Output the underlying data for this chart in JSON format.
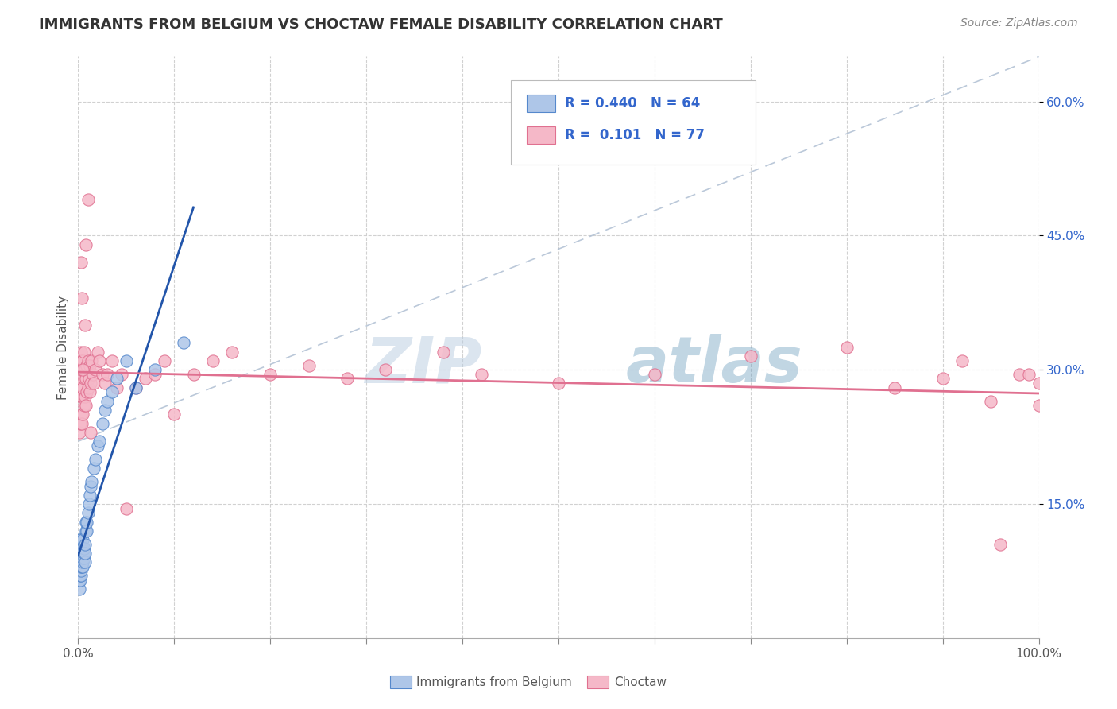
{
  "title": "IMMIGRANTS FROM BELGIUM VS CHOCTAW FEMALE DISABILITY CORRELATION CHART",
  "source_text": "Source: ZipAtlas.com",
  "ylabel": "Female Disability",
  "xmin": 0.0,
  "xmax": 1.0,
  "ymin": 0.0,
  "ymax": 0.65,
  "yticks": [
    0.15,
    0.3,
    0.45,
    0.6
  ],
  "ytick_labels": [
    "15.0%",
    "30.0%",
    "45.0%",
    "60.0%"
  ],
  "series1_color": "#aec6e8",
  "series1_edge": "#5588cc",
  "series2_color": "#f5b8c8",
  "series2_edge": "#e07090",
  "trend1_color": "#2255aa",
  "trend2_color": "#e07090",
  "trend_dash_color": "#aabbd0",
  "R1": 0.44,
  "N1": 64,
  "R2": 0.101,
  "N2": 77,
  "legend_label1": "Immigrants from Belgium",
  "legend_label2": "Choctaw",
  "watermark_zip": "ZIP",
  "watermark_atlas": "atlas",
  "background_color": "#ffffff",
  "grid_color": "#cccccc",
  "title_color": "#333333",
  "label_color": "#555555",
  "legend_text_color": "#3366cc",
  "tick_color": "#3366cc",
  "series1_data_x": [
    0.001,
    0.001,
    0.001,
    0.001,
    0.001,
    0.001,
    0.001,
    0.001,
    0.001,
    0.001,
    0.002,
    0.002,
    0.002,
    0.002,
    0.002,
    0.002,
    0.002,
    0.002,
    0.002,
    0.003,
    0.003,
    0.003,
    0.003,
    0.003,
    0.003,
    0.003,
    0.004,
    0.004,
    0.004,
    0.004,
    0.004,
    0.005,
    0.005,
    0.005,
    0.005,
    0.005,
    0.006,
    0.006,
    0.006,
    0.007,
    0.007,
    0.007,
    0.008,
    0.008,
    0.009,
    0.009,
    0.01,
    0.011,
    0.012,
    0.013,
    0.014,
    0.016,
    0.018,
    0.02,
    0.022,
    0.025,
    0.028,
    0.03,
    0.035,
    0.04,
    0.05,
    0.06,
    0.08,
    0.11
  ],
  "series1_data_y": [
    0.055,
    0.065,
    0.075,
    0.08,
    0.085,
    0.09,
    0.095,
    0.1,
    0.105,
    0.11,
    0.065,
    0.07,
    0.075,
    0.08,
    0.085,
    0.09,
    0.095,
    0.1,
    0.11,
    0.07,
    0.075,
    0.08,
    0.085,
    0.09,
    0.095,
    0.1,
    0.08,
    0.085,
    0.09,
    0.095,
    0.1,
    0.08,
    0.085,
    0.09,
    0.1,
    0.11,
    0.09,
    0.095,
    0.1,
    0.085,
    0.095,
    0.105,
    0.12,
    0.13,
    0.12,
    0.13,
    0.14,
    0.15,
    0.16,
    0.17,
    0.175,
    0.19,
    0.2,
    0.215,
    0.22,
    0.24,
    0.255,
    0.265,
    0.275,
    0.29,
    0.31,
    0.28,
    0.3,
    0.33
  ],
  "series2_data_x": [
    0.001,
    0.001,
    0.002,
    0.002,
    0.002,
    0.003,
    0.003,
    0.003,
    0.003,
    0.004,
    0.004,
    0.004,
    0.005,
    0.005,
    0.005,
    0.006,
    0.006,
    0.006,
    0.007,
    0.007,
    0.008,
    0.008,
    0.009,
    0.009,
    0.01,
    0.01,
    0.011,
    0.012,
    0.012,
    0.013,
    0.014,
    0.015,
    0.016,
    0.018,
    0.02,
    0.022,
    0.025,
    0.028,
    0.03,
    0.035,
    0.04,
    0.045,
    0.05,
    0.06,
    0.07,
    0.08,
    0.09,
    0.1,
    0.12,
    0.14,
    0.16,
    0.2,
    0.24,
    0.28,
    0.32,
    0.38,
    0.42,
    0.5,
    0.6,
    0.7,
    0.8,
    0.85,
    0.9,
    0.92,
    0.95,
    0.96,
    0.98,
    0.99,
    1.0,
    1.0,
    0.003,
    0.004,
    0.005,
    0.007,
    0.008,
    0.01,
    0.013
  ],
  "series2_data_y": [
    0.23,
    0.28,
    0.24,
    0.29,
    0.31,
    0.25,
    0.27,
    0.3,
    0.32,
    0.24,
    0.27,
    0.31,
    0.25,
    0.28,
    0.31,
    0.26,
    0.29,
    0.32,
    0.27,
    0.3,
    0.26,
    0.29,
    0.275,
    0.305,
    0.28,
    0.31,
    0.29,
    0.275,
    0.305,
    0.285,
    0.31,
    0.295,
    0.285,
    0.3,
    0.32,
    0.31,
    0.295,
    0.285,
    0.295,
    0.31,
    0.28,
    0.295,
    0.145,
    0.28,
    0.29,
    0.295,
    0.31,
    0.25,
    0.295,
    0.31,
    0.32,
    0.295,
    0.305,
    0.29,
    0.3,
    0.32,
    0.295,
    0.285,
    0.295,
    0.315,
    0.325,
    0.28,
    0.29,
    0.31,
    0.265,
    0.105,
    0.295,
    0.295,
    0.26,
    0.285,
    0.42,
    0.38,
    0.3,
    0.35,
    0.44,
    0.49,
    0.23
  ]
}
